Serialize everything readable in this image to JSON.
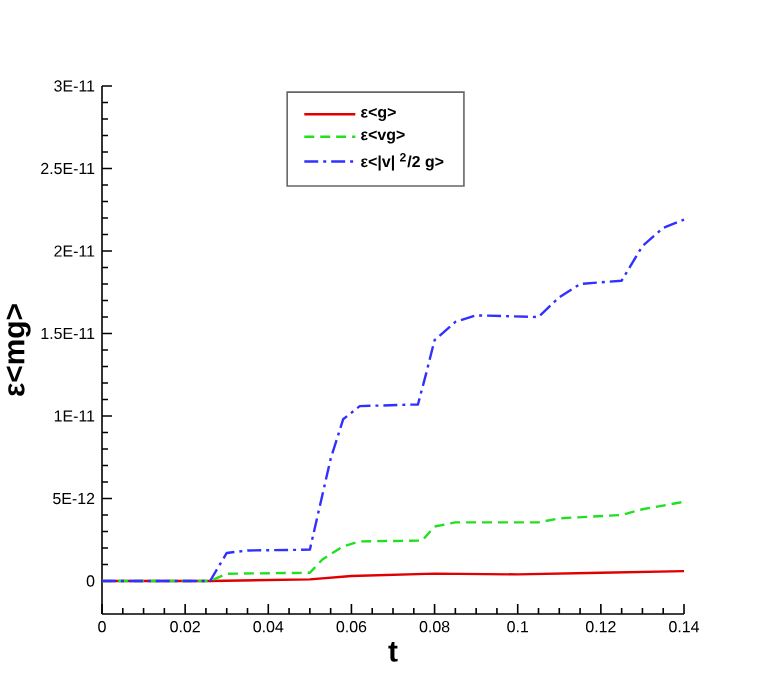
{
  "chart_data": {
    "type": "line",
    "xlabel": "t",
    "ylabel": "ε<mg>",
    "xlim": [
      0,
      0.14
    ],
    "xticks": [
      0,
      0.02,
      0.04,
      0.06,
      0.08,
      0.1,
      0.12,
      0.14
    ],
    "ylim": [
      -2e-12,
      3e-11
    ],
    "yticks": [
      {
        "value": 0,
        "label": "0"
      },
      {
        "value": 5e-12,
        "label": "5E-12"
      },
      {
        "value": 1e-11,
        "label": "1E-11"
      },
      {
        "value": 1.5e-11,
        "label": "1.5E-11"
      },
      {
        "value": 2e-11,
        "label": "2E-11"
      },
      {
        "value": 2.5e-11,
        "label": "2.5E-11"
      },
      {
        "value": 3e-11,
        "label": "3E-11"
      }
    ],
    "legend": "top",
    "grid": false,
    "marker": "none",
    "series": [
      {
        "name": "ε<g>",
        "color": "#e00000",
        "line_style": "solid",
        "x": [
          0,
          0.026,
          0.05,
          0.06,
          0.08,
          0.1,
          0.12,
          0.14
        ],
        "values": [
          0,
          0,
          1e-13,
          3e-13,
          4.5e-13,
          4e-13,
          5e-13,
          6e-13
        ]
      },
      {
        "name": "ε<vg>",
        "color": "#20e020",
        "line_style": "dashed",
        "x": [
          0,
          0.026,
          0.03,
          0.05,
          0.053,
          0.058,
          0.062,
          0.077,
          0.08,
          0.085,
          0.105,
          0.11,
          0.125,
          0.13,
          0.14
        ],
        "values": [
          0,
          0,
          4.4e-13,
          5e-13,
          1.3e-12,
          2.1e-12,
          2.4e-12,
          2.45e-12,
          3.3e-12,
          3.55e-12,
          3.55e-12,
          3.8e-12,
          4e-12,
          4.35e-12,
          4.8e-12
        ]
      },
      {
        "name": "ε<|v| $^{2}$/2 g>",
        "color": "#3030ff",
        "line_style": "dashdot",
        "x": [
          0,
          0.026,
          0.03,
          0.035,
          0.05,
          0.052,
          0.055,
          0.058,
          0.062,
          0.076,
          0.078,
          0.08,
          0.085,
          0.09,
          0.105,
          0.11,
          0.115,
          0.125,
          0.13,
          0.135,
          0.14
        ],
        "values": [
          0,
          0,
          1.7e-12,
          1.85e-12,
          1.9e-12,
          4.1e-12,
          7.4e-12,
          9.8e-12,
          1.06e-11,
          1.07e-11,
          1.26e-11,
          1.46e-11,
          1.57e-11,
          1.61e-11,
          1.6e-11,
          1.72e-11,
          1.8e-11,
          1.82e-11,
          2.03e-11,
          2.14e-11,
          2.19e-11
        ]
      }
    ]
  }
}
